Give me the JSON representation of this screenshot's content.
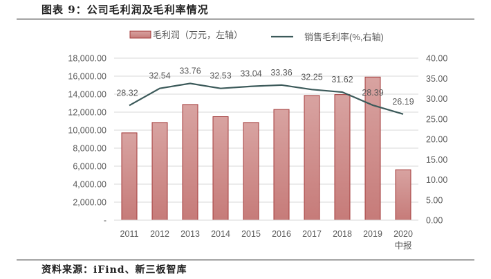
{
  "figure": {
    "title": "图表 9：公司毛利润及毛利率情况",
    "source": "资料来源：iFind、新三板智库"
  },
  "colors": {
    "bar_fill_top": "#d8a3a1",
    "bar_fill_bottom": "#c67b79",
    "bar_border": "#a33a3a",
    "line": "#3c5a5a",
    "grid": "#d9d9d9",
    "axis_text": "#595959"
  },
  "chart_data": {
    "type": "bar+line",
    "title": "公司毛利润及毛利率情况",
    "categories": [
      "2011",
      "2012",
      "2013",
      "2014",
      "2015",
      "2016",
      "2017",
      "2018",
      "2019",
      "2020\n中报"
    ],
    "category_labels": [
      {
        "line1": "2011",
        "line2": ""
      },
      {
        "line1": "2012",
        "line2": ""
      },
      {
        "line1": "2013",
        "line2": ""
      },
      {
        "line1": "2014",
        "line2": ""
      },
      {
        "line1": "2015",
        "line2": ""
      },
      {
        "line1": "2016",
        "line2": ""
      },
      {
        "line1": "2017",
        "line2": ""
      },
      {
        "line1": "2018",
        "line2": ""
      },
      {
        "line1": "2019",
        "line2": ""
      },
      {
        "line1": "2020",
        "line2": "中报"
      }
    ],
    "series": [
      {
        "name": "毛利润（万元，左轴）",
        "type": "bar",
        "axis": "left",
        "values": [
          9700,
          10850,
          12850,
          11500,
          10850,
          12300,
          13850,
          13950,
          15900,
          5600
        ]
      },
      {
        "name": "销售毛利率(%,右轴)",
        "type": "line",
        "axis": "right",
        "values": [
          28.32,
          32.54,
          33.76,
          32.53,
          33.04,
          33.36,
          32.25,
          31.62,
          28.39,
          26.19
        ],
        "labels": [
          "28.32",
          "32.54",
          "33.76",
          "32.53",
          "33.04",
          "33.36",
          "32.25",
          "31.62",
          "28.39",
          "26.19"
        ]
      }
    ],
    "left_axis": {
      "ylim": [
        0,
        18000
      ],
      "ticks": [
        "-",
        "2,000.00",
        "4,000.00",
        "6,000.00",
        "8,000.00",
        "10,000.00",
        "12,000.00",
        "14,000.00",
        "16,000.00",
        "18,000.00"
      ]
    },
    "right_axis": {
      "ylim": [
        0,
        40
      ],
      "ticks": [
        "0.00",
        "5.00",
        "10.00",
        "15.00",
        "20.00",
        "25.00",
        "30.00",
        "35.00",
        "40.00"
      ]
    },
    "legend": {
      "position": "top",
      "items": [
        "毛利润（万元，左轴）",
        "销售毛利率(%,右轴)"
      ]
    },
    "grid": true
  }
}
